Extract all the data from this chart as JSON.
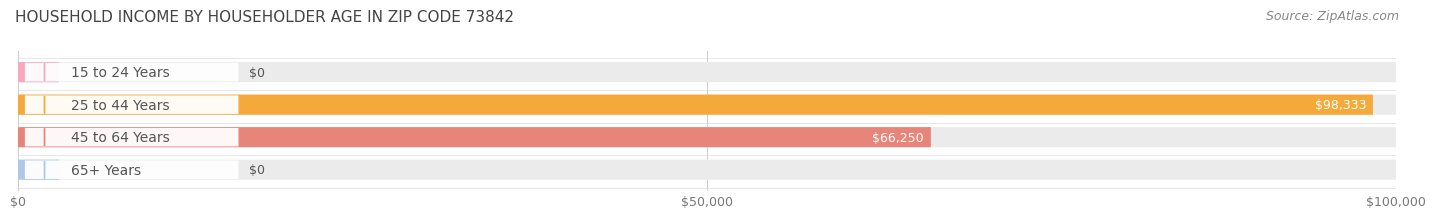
{
  "title": "HOUSEHOLD INCOME BY HOUSEHOLDER AGE IN ZIP CODE 73842",
  "source": "Source: ZipAtlas.com",
  "categories": [
    "15 to 24 Years",
    "25 to 44 Years",
    "45 to 64 Years",
    "65+ Years"
  ],
  "values": [
    0,
    98333,
    66250,
    0
  ],
  "bar_colors": [
    "#f7a8be",
    "#f5a93a",
    "#e8857a",
    "#afc8e8"
  ],
  "bar_bg_color": "#ebebeb",
  "value_labels": [
    "$0",
    "$98,333",
    "$66,250",
    "$0"
  ],
  "value_label_inside": [
    false,
    true,
    true,
    false
  ],
  "xlim": [
    0,
    100000
  ],
  "xticks": [
    0,
    50000,
    100000
  ],
  "xticklabels": [
    "$0",
    "$50,000",
    "$100,000"
  ],
  "background_color": "#ffffff",
  "title_fontsize": 11,
  "source_fontsize": 9,
  "label_fontsize": 10,
  "value_fontsize": 9,
  "label_pill_color": "#ffffff",
  "label_text_color": "#555555",
  "row_sep_color": "#dddddd"
}
